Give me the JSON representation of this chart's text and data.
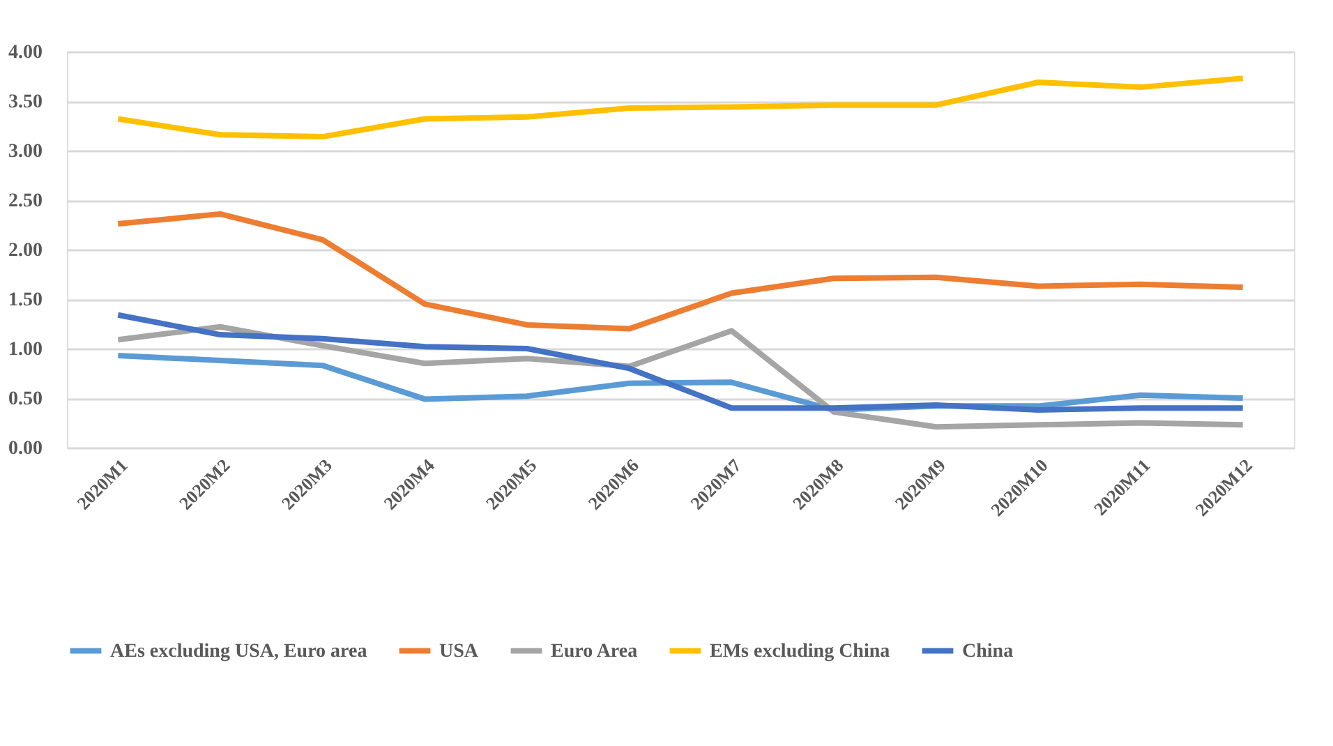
{
  "chart_data": {
    "type": "line",
    "categories": [
      "2020M1",
      "2020M2",
      "2020M3",
      "2020M4",
      "2020M5",
      "2020M6",
      "2020M7",
      "2020M8",
      "2020M9",
      "2020M10",
      "2020M11",
      "2020M12"
    ],
    "series": [
      {
        "name": "AEs excluding USA, Euro area",
        "color": "#5b9bd5",
        "values": [
          0.93,
          0.88,
          0.83,
          0.49,
          0.52,
          0.65,
          0.66,
          0.38,
          0.42,
          0.42,
          0.53,
          0.5
        ]
      },
      {
        "name": "USA",
        "color": "#ed7d31",
        "values": [
          2.26,
          2.36,
          2.1,
          1.45,
          1.24,
          1.2,
          1.56,
          1.71,
          1.72,
          1.63,
          1.65,
          1.62
        ]
      },
      {
        "name": "Euro Area",
        "color": "#a5a5a5",
        "values": [
          1.09,
          1.22,
          1.03,
          0.85,
          0.9,
          0.82,
          1.18,
          0.36,
          0.21,
          0.23,
          0.25,
          0.23
        ]
      },
      {
        "name": "EMs excluding China",
        "color": "#ffc000",
        "values": [
          3.32,
          3.16,
          3.14,
          3.32,
          3.34,
          3.43,
          3.44,
          3.46,
          3.46,
          3.69,
          3.64,
          3.73
        ]
      },
      {
        "name": "China",
        "color": "#4472c4",
        "values": [
          1.34,
          1.14,
          1.1,
          1.02,
          1.0,
          0.8,
          0.4,
          0.4,
          0.43,
          0.38,
          0.4,
          0.4
        ]
      }
    ],
    "ylim": [
      0,
      4
    ],
    "yticks": [
      {
        "value": 0,
        "label": "0.00"
      },
      {
        "value": 0.5,
        "label": "0.50"
      },
      {
        "value": 1,
        "label": "1.00"
      },
      {
        "value": 1.5,
        "label": "1.50"
      },
      {
        "value": 2,
        "label": "2.00"
      },
      {
        "value": 2.5,
        "label": "2.50"
      },
      {
        "value": 3,
        "label": "3.00"
      },
      {
        "value": 3.5,
        "label": "3.50"
      },
      {
        "value": 4,
        "label": "4.00"
      }
    ],
    "grid": "y",
    "legend": "bottom",
    "marker": "none",
    "line_style": "solid"
  }
}
